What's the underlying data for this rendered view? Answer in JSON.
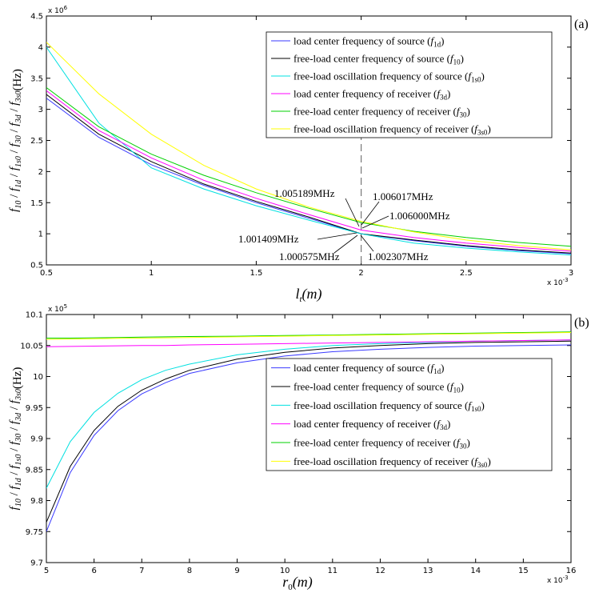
{
  "figure": {
    "background": "#ffffff"
  },
  "chart_data": [
    {
      "type": "line",
      "panel_label": "(a)",
      "ylabel": "f10 / f1d / f1s0 / f30 / f3d / f3s0 (Hz)",
      "xlabel": "lt(m)",
      "x_multiplier": "x 10^-3",
      "y_multiplier": "x 10^6",
      "x_multiplier_text": "x 10",
      "x_multiplier_exp": "-3",
      "y_multiplier_text": "x 10",
      "y_multiplier_exp": "6",
      "xlim": [
        0.5,
        3
      ],
      "ylim": [
        0.5,
        4.5
      ],
      "xticks": [
        "0.5",
        "1",
        "1.5",
        "2",
        "2.5",
        "3"
      ],
      "yticks": [
        "0.5",
        "1",
        "1.5",
        "2",
        "2.5",
        "3",
        "3.5",
        "4",
        "4.5"
      ],
      "x": [
        0.5,
        0.75,
        1.0,
        1.25,
        1.5,
        1.75,
        2.0,
        2.25,
        2.5,
        2.75,
        3.0
      ],
      "legend_position": "top-right",
      "series": [
        {
          "name": "load center frequency of source",
          "symbol": "1d",
          "color": "#3a3aff",
          "values": [
            3.18,
            2.55,
            2.11,
            1.78,
            1.5,
            1.25,
            1.0,
            0.89,
            0.8,
            0.73,
            0.68
          ]
        },
        {
          "name": "free-load center frequency of source",
          "symbol": "10",
          "color": "#000000",
          "values": [
            3.24,
            2.6,
            2.16,
            1.8,
            1.52,
            1.27,
            1.0,
            0.9,
            0.81,
            0.74,
            0.69
          ]
        },
        {
          "name": "free-load oscillation frequency of source",
          "symbol": "1s0",
          "color": "#00e0e0",
          "values": [
            4.0,
            2.78,
            2.06,
            1.72,
            1.45,
            1.22,
            1.0,
            0.85,
            0.77,
            0.71,
            0.66
          ]
        },
        {
          "name": "load center frequency of receiver",
          "symbol": "3d",
          "color": "#ff00ff",
          "values": [
            3.3,
            2.66,
            2.22,
            1.86,
            1.57,
            1.31,
            1.06,
            0.94,
            0.85,
            0.78,
            0.72
          ]
        },
        {
          "name": "free-load center frequency of receiver",
          "symbol": "30",
          "color": "#00d000",
          "values": [
            3.35,
            2.72,
            2.28,
            1.94,
            1.66,
            1.41,
            1.18,
            1.04,
            0.94,
            0.86,
            0.8
          ]
        },
        {
          "name": "free-load oscillation frequency of receiver",
          "symbol": "3s0",
          "color": "#ffff00",
          "values": [
            4.08,
            3.25,
            2.6,
            2.1,
            1.72,
            1.43,
            1.2,
            1.03,
            0.9,
            0.81,
            0.74
          ]
        }
      ],
      "marker_x": 2,
      "annotations": [
        {
          "text": "1.005189MHz",
          "x": 2,
          "y": 1.15
        },
        {
          "text": "1.006017MHz",
          "x": 2,
          "y": 1.17
        },
        {
          "text": "1.006000MHz",
          "x": 2,
          "y": 1.13
        },
        {
          "text": "1.001409MHz",
          "x": 2,
          "y": 1.0
        },
        {
          "text": "1.000575MHz",
          "x": 2,
          "y": 0.99
        },
        {
          "text": "1.002307MHz",
          "x": 2,
          "y": 0.98
        }
      ]
    },
    {
      "type": "line",
      "panel_label": "(b)",
      "ylabel": "f10 / f1d / f1s0 / f30 / f3d / f3s0 (Hz)",
      "xlabel": "r0(m)",
      "x_multiplier": "x 10^-3",
      "y_multiplier": "x 10^5",
      "x_multiplier_text": "x 10",
      "x_multiplier_exp": "-3",
      "y_multiplier_text": "x 10",
      "y_multiplier_exp": "5",
      "xlim": [
        5,
        16
      ],
      "ylim": [
        9.7,
        10.1
      ],
      "xticks": [
        "5",
        "6",
        "7",
        "8",
        "9",
        "10",
        "11",
        "12",
        "13",
        "14",
        "15",
        "16"
      ],
      "yticks": [
        "9.7",
        "9.75",
        "9.8",
        "9.85",
        "9.9",
        "9.95",
        "10",
        "10.05",
        "10.1"
      ],
      "x": [
        5,
        5.5,
        6,
        6.5,
        7,
        7.5,
        8,
        9,
        10,
        11,
        12,
        13,
        14,
        15,
        16
      ],
      "legend_position": "center-right",
      "series": [
        {
          "name": "load center frequency of source",
          "symbol": "1d",
          "color": "#3a3aff",
          "values": [
            9.75,
            9.845,
            9.905,
            9.945,
            9.972,
            9.99,
            10.005,
            10.022,
            10.033,
            10.04,
            10.044,
            10.047,
            10.049,
            10.05,
            10.051
          ]
        },
        {
          "name": "free-load center frequency of source",
          "symbol": "10",
          "color": "#000000",
          "values": [
            9.765,
            9.855,
            9.913,
            9.952,
            9.978,
            9.996,
            10.01,
            10.028,
            10.039,
            10.046,
            10.05,
            10.053,
            10.055,
            10.056,
            10.057
          ]
        },
        {
          "name": "free-load oscillation frequency of source",
          "symbol": "1s0",
          "color": "#00e0e0",
          "values": [
            9.82,
            9.895,
            9.942,
            9.973,
            9.995,
            10.01,
            10.02,
            10.035,
            10.044,
            10.05,
            10.053,
            10.055,
            10.057,
            10.058,
            10.059
          ]
        },
        {
          "name": "load center frequency of receiver",
          "symbol": "3d",
          "color": "#ff00ff",
          "values": [
            10.048,
            10.0485,
            10.049,
            10.0495,
            10.05,
            10.05,
            10.051,
            10.052,
            10.053,
            10.054,
            10.055,
            10.056,
            10.057,
            10.058,
            10.059
          ]
        },
        {
          "name": "free-load center frequency of receiver",
          "symbol": "30",
          "color": "#00d000",
          "values": [
            10.062,
            10.062,
            10.0625,
            10.063,
            10.0635,
            10.064,
            10.0645,
            10.065,
            10.066,
            10.067,
            10.068,
            10.069,
            10.07,
            10.071,
            10.072
          ]
        },
        {
          "name": "free-load oscillation frequency of receiver",
          "symbol": "3s0",
          "color": "#ffff00",
          "values": [
            10.06,
            10.0605,
            10.061,
            10.0615,
            10.062,
            10.0625,
            10.063,
            10.064,
            10.065,
            10.066,
            10.067,
            10.068,
            10.069,
            10.07,
            10.071
          ]
        }
      ]
    }
  ]
}
